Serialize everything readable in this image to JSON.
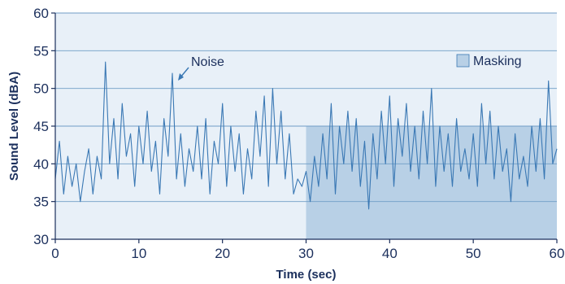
{
  "chart_data": {
    "type": "line",
    "xlabel": "Time (sec)",
    "ylabel": "Sound Level (dBA)",
    "xlim": [
      0,
      60
    ],
    "ylim": [
      30,
      60
    ],
    "xticks": [
      0,
      10,
      20,
      30,
      40,
      50,
      60
    ],
    "yticks": [
      30,
      35,
      40,
      45,
      50,
      55,
      60
    ],
    "xtick_labels": [
      "0",
      "10",
      "20",
      "30",
      "40",
      "50",
      "60"
    ],
    "ytick_labels": [
      "30",
      "35",
      "40",
      "45",
      "50",
      "55",
      "60"
    ],
    "grid": true,
    "series": [
      {
        "name": "Noise",
        "x": [
          0,
          0.5,
          1,
          1.5,
          2,
          2.5,
          3,
          3.5,
          4,
          4.5,
          5,
          5.5,
          6,
          6.5,
          7,
          7.5,
          8,
          8.5,
          9,
          9.5,
          10,
          10.5,
          11,
          11.5,
          12,
          12.5,
          13,
          13.5,
          14,
          14.5,
          15,
          15.5,
          16,
          16.5,
          17,
          17.5,
          18,
          18.5,
          19,
          19.5,
          20,
          20.5,
          21,
          21.5,
          22,
          22.5,
          23,
          23.5,
          24,
          24.5,
          25,
          25.5,
          26,
          26.5,
          27,
          27.5,
          28,
          28.5,
          29,
          29.5,
          30,
          30.5,
          31,
          31.5,
          32,
          32.5,
          33,
          33.5,
          34,
          34.5,
          35,
          35.5,
          36,
          36.5,
          37,
          37.5,
          38,
          38.5,
          39,
          39.5,
          40,
          40.5,
          41,
          41.5,
          42,
          42.5,
          43,
          43.5,
          44,
          44.5,
          45,
          45.5,
          46,
          46.5,
          47,
          47.5,
          48,
          48.5,
          49,
          49.5,
          50,
          50.5,
          51,
          51.5,
          52,
          52.5,
          53,
          53.5,
          54,
          54.5,
          55,
          55.5,
          56,
          56.5,
          57,
          57.5,
          58,
          58.5,
          59,
          59.5,
          60
        ],
        "y": [
          38,
          43,
          36,
          41,
          37,
          40,
          35,
          39,
          42,
          36,
          41,
          38,
          53.5,
          40,
          46,
          38,
          48,
          41,
          44,
          37,
          45,
          40,
          47,
          39,
          43,
          36,
          46,
          41,
          52,
          38,
          44,
          37,
          42,
          39,
          45,
          38,
          46,
          36,
          43,
          40,
          48,
          37,
          45,
          39,
          44,
          36,
          42,
          38,
          47,
          41,
          49,
          37,
          50,
          40,
          47,
          38,
          44,
          36,
          38,
          37,
          39,
          35,
          41,
          37,
          44,
          38,
          48,
          36,
          45,
          40,
          47,
          39,
          46,
          37,
          43,
          34,
          44,
          38,
          47,
          40,
          49,
          37,
          46,
          41,
          48,
          39,
          45,
          38,
          47,
          40,
          50,
          37,
          45,
          39,
          44,
          37,
          46,
          39,
          42,
          38,
          44,
          37,
          48,
          40,
          47,
          38,
          45,
          39,
          42,
          35,
          44,
          38,
          41,
          37,
          45,
          39,
          46,
          38,
          51,
          40,
          42
        ]
      }
    ],
    "annotations": {
      "noise_label": "Noise",
      "masking_label": "Masking"
    },
    "masking_region": {
      "x_start": 30,
      "x_end": 60,
      "y_top": 45
    },
    "colors": {
      "line": "#3a78b4",
      "masking": "#b8d0e6",
      "plot_bg": "#e8f0f8",
      "grid": "#6f9dc6",
      "axis": "#1b2f5c"
    }
  }
}
